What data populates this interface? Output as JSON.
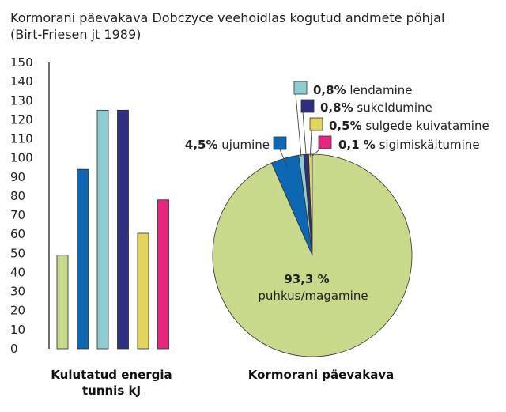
{
  "title_line1": "Kormorani päevakava Dobczyce veehoidlas kogutud andmete põhjal",
  "title_line2": "(Birt-Friesen jt 1989)",
  "chart_data": [
    {
      "type": "bar",
      "xlabel_line1": "Kulutatud energia",
      "xlabel_line2": "tunnis kJ",
      "ylim": [
        0,
        150
      ],
      "yticks": [
        "0",
        "10",
        "20",
        "30",
        "40",
        "50",
        "60",
        "70",
        "80",
        "90",
        "100",
        "110",
        "120",
        "130",
        "140",
        "150"
      ],
      "grid": false,
      "categories": [
        "puhkus/magamine",
        "ujumine",
        "lendamine",
        "sukeldumine",
        "sulgede kuivatamine",
        "sigimiskäitumine"
      ],
      "values": [
        49,
        94,
        125,
        125,
        60.5,
        78
      ],
      "colors": [
        "#c8d98b",
        "#0d67b3",
        "#8dcdd0",
        "#2e2f7e",
        "#e3d45e",
        "#e5267c"
      ]
    },
    {
      "type": "pie",
      "xlabel": "Kormorani päevakava",
      "slices": [
        {
          "name": "puhkus/magamine",
          "value": 93.3,
          "value_label": "93,3 %",
          "color": "#c8d98b"
        },
        {
          "name": "ujumine",
          "value": 4.5,
          "value_label": "4,5%",
          "color": "#0d67b3"
        },
        {
          "name": "lendamine",
          "value": 0.8,
          "value_label": "0,8%",
          "color": "#8dcdd0"
        },
        {
          "name": "sukeldumine",
          "value": 0.8,
          "value_label": "0,8%",
          "color": "#2e2f7e"
        },
        {
          "name": "sulgede kuivatamine",
          "value": 0.5,
          "value_label": "0,5%",
          "color": "#e3d45e"
        },
        {
          "name": "sigimiskäitumine",
          "value": 0.1,
          "value_label": "0,1 %",
          "color": "#e5267c"
        }
      ]
    }
  ]
}
